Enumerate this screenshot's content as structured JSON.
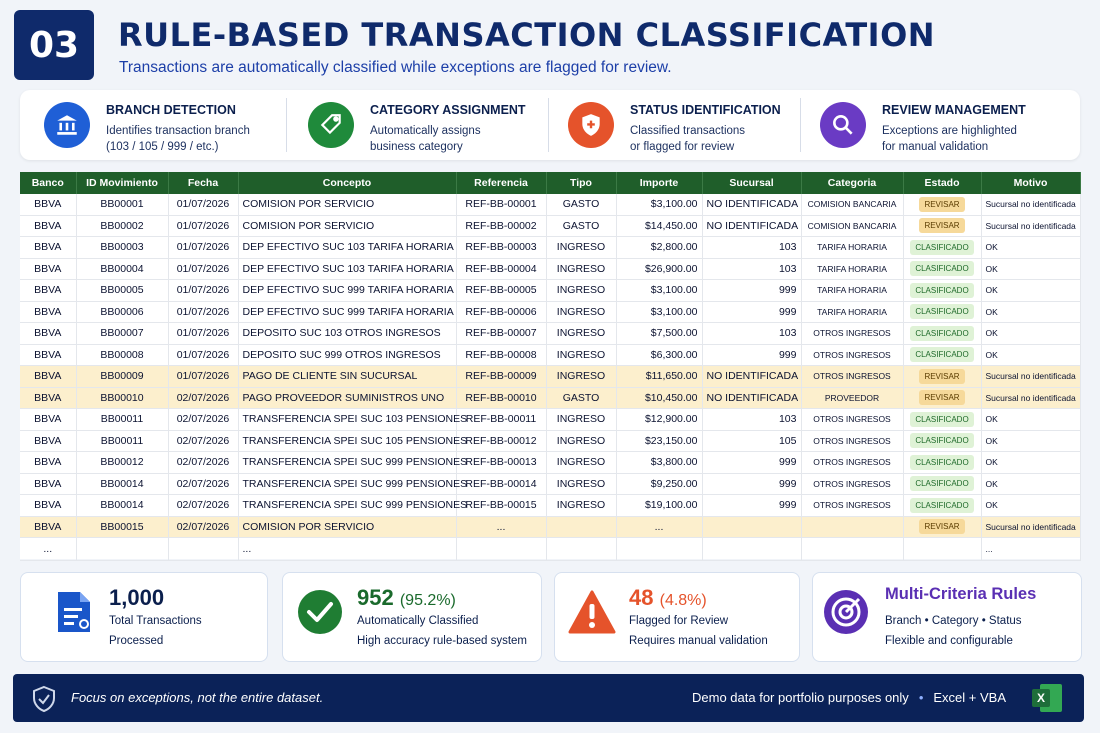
{
  "header": {
    "number": "03",
    "title": "RULE-BASED TRANSACTION CLASSIFICATION",
    "subtitle": "Transactions are automatically classified while exceptions are flagged for review."
  },
  "features": [
    {
      "title": "BRANCH DETECTION",
      "line1": "Identifies transaction branch",
      "line2": "(103 / 105 / 999 / etc.)",
      "icon": "bank-icon",
      "color": "#1f5fd6"
    },
    {
      "title": "CATEGORY ASSIGNMENT",
      "line1": "Automatically assigns",
      "line2": "business category",
      "icon": "tag-icon",
      "color": "#1f8a3b"
    },
    {
      "title": "STATUS IDENTIFICATION",
      "line1": "Classified transactions",
      "line2": "or flagged for review",
      "icon": "shield-plus-icon",
      "color": "#e5532b"
    },
    {
      "title": "REVIEW MANAGEMENT",
      "line1": "Exceptions are highlighted",
      "line2": "for manual validation",
      "icon": "magnifier-icon",
      "color": "#6a3bc4"
    }
  ],
  "table": {
    "headers": [
      "Banco",
      "ID Movimiento",
      "Fecha",
      "Concepto",
      "Referencia",
      "Tipo",
      "Importe",
      "Sucursal",
      "Categoria",
      "Estado",
      "Motivo"
    ],
    "rows": [
      [
        "BBVA",
        "BB00001",
        "01/07/2026",
        "COMISION POR SERVICIO",
        "REF-BB-00001",
        "GASTO",
        "$3,100.00",
        "NO IDENTIFICADA",
        "COMISION BANCARIA",
        "REVISAR",
        "Sucursal no identificada"
      ],
      [
        "BBVA",
        "BB00002",
        "01/07/2026",
        "COMISION POR SERVICIO",
        "REF-BB-00002",
        "GASTO",
        "$14,450.00",
        "NO IDENTIFICADA",
        "COMISION BANCARIA",
        "REVISAR",
        "Sucursal no identificada"
      ],
      [
        "BBVA",
        "BB00003",
        "01/07/2026",
        "DEP EFECTIVO SUC 103 TARIFA HORARIA",
        "REF-BB-00003",
        "INGRESO",
        "$2,800.00",
        "103",
        "TARIFA HORARIA",
        "CLASIFICADO",
        "OK"
      ],
      [
        "BBVA",
        "BB00004",
        "01/07/2026",
        "DEP EFECTIVO SUC 103 TARIFA HORARIA",
        "REF-BB-00004",
        "INGRESO",
        "$26,900.00",
        "103",
        "TARIFA HORARIA",
        "CLASIFICADO",
        "OK"
      ],
      [
        "BBVA",
        "BB00005",
        "01/07/2026",
        "DEP EFECTIVO SUC 999 TARIFA HORARIA",
        "REF-BB-00005",
        "INGRESO",
        "$3,100.00",
        "999",
        "TARIFA HORARIA",
        "CLASIFICADO",
        "OK"
      ],
      [
        "BBVA",
        "BB00006",
        "01/07/2026",
        "DEP EFECTIVO SUC 999 TARIFA HORARIA",
        "REF-BB-00006",
        "INGRESO",
        "$3,100.00",
        "999",
        "TARIFA HORARIA",
        "CLASIFICADO",
        "OK"
      ],
      [
        "BBVA",
        "BB00007",
        "01/07/2026",
        "DEPOSITO SUC 103 OTROS INGRESOS",
        "REF-BB-00007",
        "INGRESO",
        "$7,500.00",
        "103",
        "OTROS INGRESOS",
        "CLASIFICADO",
        "OK"
      ],
      [
        "BBVA",
        "BB00008",
        "01/07/2026",
        "DEPOSITO SUC 999 OTROS INGRESOS",
        "REF-BB-00008",
        "INGRESO",
        "$6,300.00",
        "999",
        "OTROS INGRESOS",
        "CLASIFICADO",
        "OK"
      ],
      [
        "BBVA",
        "BB00009",
        "01/07/2026",
        "PAGO DE CLIENTE SIN SUCURSAL",
        "REF-BB-00009",
        "INGRESO",
        "$11,650.00",
        "NO IDENTIFICADA",
        "OTROS INGRESOS",
        "REVISAR",
        "Sucursal no identificada"
      ],
      [
        "BBVA",
        "BB00010",
        "02/07/2026",
        "PAGO PROVEEDOR SUMINISTROS UNO",
        "REF-BB-00010",
        "GASTO",
        "$10,450.00",
        "NO IDENTIFICADA",
        "PROVEEDOR",
        "REVISAR",
        "Sucursal no identificada"
      ],
      [
        "BBVA",
        "BB00011",
        "02/07/2026",
        "TRANSFERENCIA SPEI SUC 103 PENSIONES",
        "REF-BB-00011",
        "INGRESO",
        "$12,900.00",
        "103",
        "OTROS INGRESOS",
        "CLASIFICADO",
        "OK"
      ],
      [
        "BBVA",
        "BB00011",
        "02/07/2026",
        "TRANSFERENCIA SPEI SUC 105 PENSIONES",
        "REF-BB-00012",
        "INGRESO",
        "$23,150.00",
        "105",
        "OTROS INGRESOS",
        "CLASIFICADO",
        "OK"
      ],
      [
        "BBVA",
        "BB00012",
        "02/07/2026",
        "TRANSFERENCIA SPEI SUC 999 PENSIONES",
        "REF-BB-00013",
        "INGRESO",
        "$3,800.00",
        "999",
        "OTROS INGRESOS",
        "CLASIFICADO",
        "OK"
      ],
      [
        "BBVA",
        "BB00014",
        "02/07/2026",
        "TRANSFERENCIA SPEI SUC 999 PENSIONES",
        "REF-BB-00014",
        "INGRESO",
        "$9,250.00",
        "999",
        "OTROS INGRESOS",
        "CLASIFICADO",
        "OK"
      ],
      [
        "BBVA",
        "BB00014",
        "02/07/2026",
        "TRANSFERENCIA SPEI SUC 999 PENSIONES",
        "REF-BB-00015",
        "INGRESO",
        "$19,100.00",
        "999",
        "OTROS INGRESOS",
        "CLASIFICADO",
        "OK"
      ],
      [
        "BBVA",
        "BB00015",
        "02/07/2026",
        "COMISION POR SERVICIO",
        "...",
        "",
        "...",
        "",
        "",
        "REVISAR",
        "Sucursal no identificada"
      ],
      [
        "...",
        "",
        "",
        "...",
        "",
        "",
        "",
        "",
        "",
        "",
        "..."
      ]
    ]
  },
  "stats": [
    {
      "value": "1,000",
      "pct": "",
      "line1": "Total Transactions",
      "line2": "Processed",
      "icon": "document-icon",
      "color": "#1a56c9"
    },
    {
      "value": "952",
      "pct": "(95.2%)",
      "line1": "Automatically Classified",
      "line2": "High accuracy rule-based system",
      "icon": "check-circle-icon",
      "color": "#1f7d33"
    },
    {
      "value": "48",
      "pct": "(4.8%)",
      "line1": "Flagged for Review",
      "line2": "Requires manual validation",
      "icon": "warning-icon",
      "color": "#e5532b"
    },
    {
      "value": "Multi-Criteria Rules",
      "pct": "",
      "line1": "Branch  •  Category  •  Status",
      "line2": "Flexible and configurable",
      "icon": "target-icon",
      "color": "#5a2fb3"
    }
  ],
  "footer": {
    "left": "Focus on exceptions, not the entire dataset.",
    "right1": "Demo data for portfolio purposes only",
    "right2": "Excel + VBA",
    "excel_label": "X"
  }
}
